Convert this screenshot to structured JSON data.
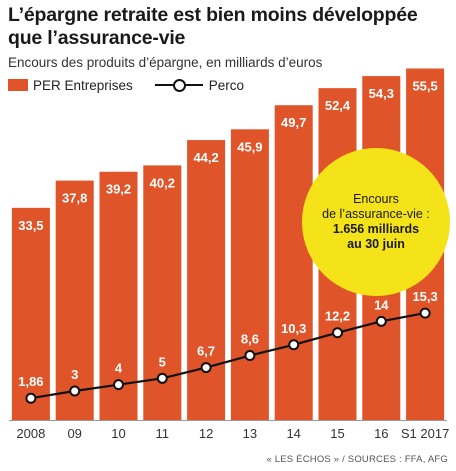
{
  "title": "L’épargne retraite est bien moins développée que l’assurance-vie",
  "subtitle": "Encours des produits d’épargne, en milliards d’euros",
  "source": "« LES ÉCHOS » / SOURCES : FFA, AFG",
  "annotation": {
    "line1": "Encours",
    "line2": "de l’assurance-vie :",
    "line3": "1.656 milliards",
    "line4": "au 30 juin"
  },
  "colors": {
    "bar": "#e0542a",
    "line": "#111111",
    "annotation_bg": "#f5e31a",
    "axis": "#999999"
  },
  "chart_data": {
    "type": "bar",
    "categories": [
      "2008",
      "09",
      "10",
      "11",
      "12",
      "13",
      "14",
      "15",
      "16",
      "S1 2017"
    ],
    "series": [
      {
        "name": "PER Entreprises",
        "type": "bar",
        "values": [
          33.5,
          37.8,
          39.2,
          40.2,
          44.2,
          45.9,
          49.7,
          52.4,
          54.3,
          55.5
        ],
        "labels": [
          "33,5",
          "37,8",
          "39,2",
          "40,2",
          "44,2",
          "45,9",
          "49,7",
          "52,4",
          "54,3",
          "55,5"
        ]
      },
      {
        "name": "Perco",
        "type": "line",
        "values": [
          1.86,
          3,
          4,
          5,
          6.7,
          8.6,
          10.3,
          12.2,
          14,
          15.3
        ],
        "labels": [
          "1,86",
          "3",
          "4",
          "5",
          "6,7",
          "8,6",
          "10,3",
          "12,2",
          "14",
          "15,3"
        ]
      }
    ],
    "ylim": [
      0,
      60
    ],
    "grid": false,
    "legend": "top-left"
  }
}
